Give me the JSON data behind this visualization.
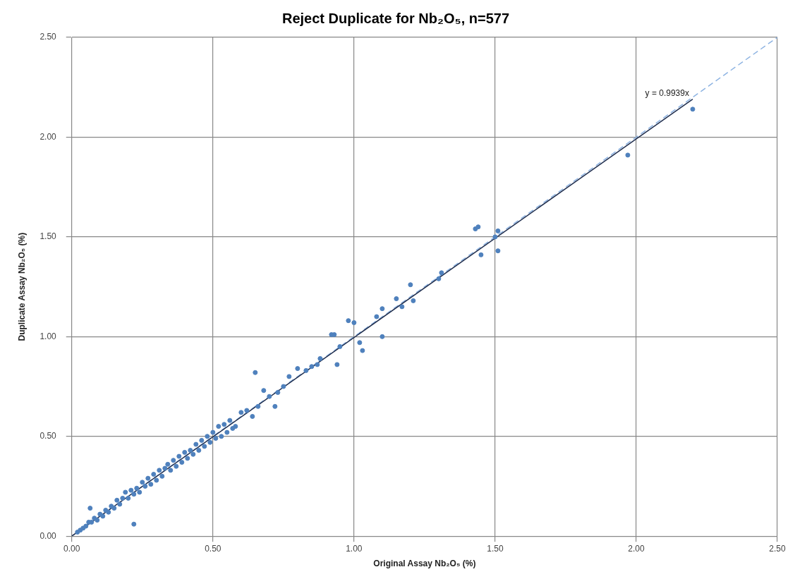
{
  "chart_data": {
    "type": "scatter",
    "title": "Reject Duplicate for Nb₂O₅, n=577",
    "xlabel": "Original Assay Nb₂O₅ (%)",
    "ylabel": "Duplicate Assay Nb₂O₅ (%)",
    "xlim": [
      0,
      2.5
    ],
    "ylim": [
      0,
      2.5
    ],
    "xticks": [
      {
        "value": 0,
        "label": "0.00"
      },
      {
        "value": 0.5,
        "label": "0.50"
      },
      {
        "value": 1,
        "label": "1.00"
      },
      {
        "value": 1.5,
        "label": "1.50"
      },
      {
        "value": 2,
        "label": "2.00"
      },
      {
        "value": 2.5,
        "label": "2.50"
      }
    ],
    "yticks": [
      {
        "value": 0,
        "label": "0.00"
      },
      {
        "value": 0.5,
        "label": "0.50"
      },
      {
        "value": 1,
        "label": "1.00"
      },
      {
        "value": 1.5,
        "label": "1.50"
      },
      {
        "value": 2,
        "label": "2.00"
      },
      {
        "value": 2.5,
        "label": "2.50"
      }
    ],
    "grid": true,
    "legend": false,
    "marker": "circle",
    "series": [
      {
        "color": "#4f81bd",
        "x": [
          0.02,
          0.03,
          0.04,
          0.05,
          0.06,
          0.065,
          0.07,
          0.08,
          0.09,
          0.1,
          0.11,
          0.12,
          0.13,
          0.14,
          0.15,
          0.16,
          0.17,
          0.18,
          0.19,
          0.2,
          0.21,
          0.22,
          0.22,
          0.23,
          0.24,
          0.25,
          0.26,
          0.27,
          0.28,
          0.29,
          0.3,
          0.31,
          0.32,
          0.33,
          0.34,
          0.35,
          0.36,
          0.37,
          0.38,
          0.39,
          0.4,
          0.41,
          0.42,
          0.43,
          0.44,
          0.45,
          0.46,
          0.47,
          0.48,
          0.49,
          0.5,
          0.51,
          0.52,
          0.53,
          0.54,
          0.55,
          0.56,
          0.57,
          0.58,
          0.6,
          0.62,
          0.64,
          0.65,
          0.66,
          0.68,
          0.7,
          0.72,
          0.73,
          0.75,
          0.77,
          0.8,
          0.83,
          0.85,
          0.87,
          0.88,
          0.92,
          0.93,
          0.94,
          0.95,
          0.98,
          1.0,
          1.02,
          1.03,
          1.08,
          1.1,
          1.1,
          1.15,
          1.17,
          1.2,
          1.21,
          1.3,
          1.31,
          1.43,
          1.44,
          1.45,
          1.5,
          1.51,
          1.51,
          1.97,
          2.2
        ],
        "values": [
          0.02,
          0.03,
          0.04,
          0.05,
          0.07,
          0.14,
          0.07,
          0.09,
          0.08,
          0.11,
          0.1,
          0.13,
          0.12,
          0.15,
          0.14,
          0.18,
          0.16,
          0.19,
          0.22,
          0.19,
          0.23,
          0.06,
          0.21,
          0.24,
          0.22,
          0.27,
          0.25,
          0.29,
          0.26,
          0.31,
          0.28,
          0.33,
          0.3,
          0.34,
          0.36,
          0.33,
          0.38,
          0.35,
          0.4,
          0.37,
          0.42,
          0.39,
          0.43,
          0.41,
          0.46,
          0.43,
          0.48,
          0.45,
          0.5,
          0.47,
          0.52,
          0.49,
          0.55,
          0.5,
          0.56,
          0.52,
          0.58,
          0.54,
          0.55,
          0.62,
          0.63,
          0.6,
          0.82,
          0.65,
          0.73,
          0.7,
          0.65,
          0.72,
          0.75,
          0.8,
          0.84,
          0.83,
          0.85,
          0.86,
          0.89,
          1.01,
          1.01,
          0.86,
          0.95,
          1.08,
          1.07,
          0.97,
          0.93,
          1.1,
          1.0,
          1.14,
          1.19,
          1.15,
          1.26,
          1.18,
          1.29,
          1.32,
          1.54,
          1.55,
          1.41,
          1.5,
          1.53,
          1.43,
          1.91,
          2.14
        ]
      },
      {
        "type": "line",
        "color": "#1f2d4d",
        "marker": "none",
        "line_style": "solid",
        "x": [
          0,
          2.2
        ],
        "values": [
          0,
          2.19
        ]
      },
      {
        "type": "line",
        "color": "#8db3e2",
        "marker": "none",
        "line_style": "dashed",
        "x": [
          0,
          2.5
        ],
        "values": [
          0,
          2.5
        ]
      }
    ],
    "annotations": [
      "y = 0.9939x"
    ]
  }
}
